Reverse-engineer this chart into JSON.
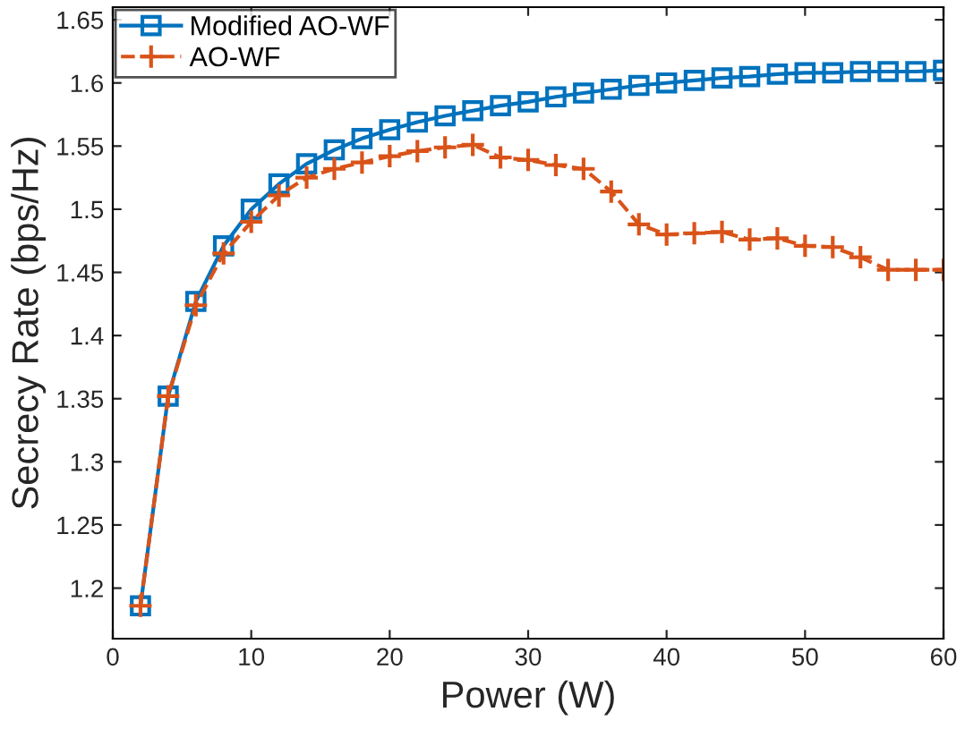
{
  "chart_data": {
    "type": "line",
    "xlabel": "Power (W)",
    "ylabel": "Secrecy Rate (bps/Hz)",
    "x": [
      2,
      4,
      6,
      8,
      10,
      12,
      14,
      16,
      18,
      20,
      22,
      24,
      26,
      28,
      30,
      32,
      34,
      36,
      38,
      40,
      42,
      44,
      46,
      48,
      50,
      52,
      54,
      56,
      58,
      60
    ],
    "series": [
      {
        "name": "Modified AO-WF",
        "color": "#0072bd",
        "marker": "square",
        "line_style": "solid",
        "values": [
          1.186,
          1.352,
          1.427,
          1.471,
          1.5,
          1.52,
          1.536,
          1.547,
          1.556,
          1.563,
          1.569,
          1.574,
          1.578,
          1.582,
          1.585,
          1.589,
          1.592,
          1.595,
          1.598,
          1.6,
          1.602,
          1.604,
          1.605,
          1.607,
          1.608,
          1.608,
          1.609,
          1.609,
          1.609,
          1.61
        ]
      },
      {
        "name": "AO-WF",
        "color": "#d95319",
        "marker": "cross",
        "line_style": "dashed",
        "values": [
          1.186,
          1.352,
          1.424,
          1.465,
          1.49,
          1.511,
          1.525,
          1.532,
          1.537,
          1.542,
          1.546,
          1.549,
          1.551,
          1.541,
          1.539,
          1.535,
          1.532,
          1.514,
          1.488,
          1.48,
          1.481,
          1.482,
          1.476,
          1.477,
          1.471,
          1.47,
          1.462,
          1.452,
          1.452,
          1.452
        ]
      }
    ],
    "xlim": [
      0,
      60
    ],
    "xticks": [
      0,
      10,
      20,
      30,
      40,
      50,
      60
    ],
    "ylim": [
      1.16,
      1.66
    ],
    "yticks": [
      1.2,
      1.25,
      1.3,
      1.35,
      1.4,
      1.45,
      1.5,
      1.55,
      1.6,
      1.65
    ],
    "grid": false,
    "legend": "top left"
  }
}
